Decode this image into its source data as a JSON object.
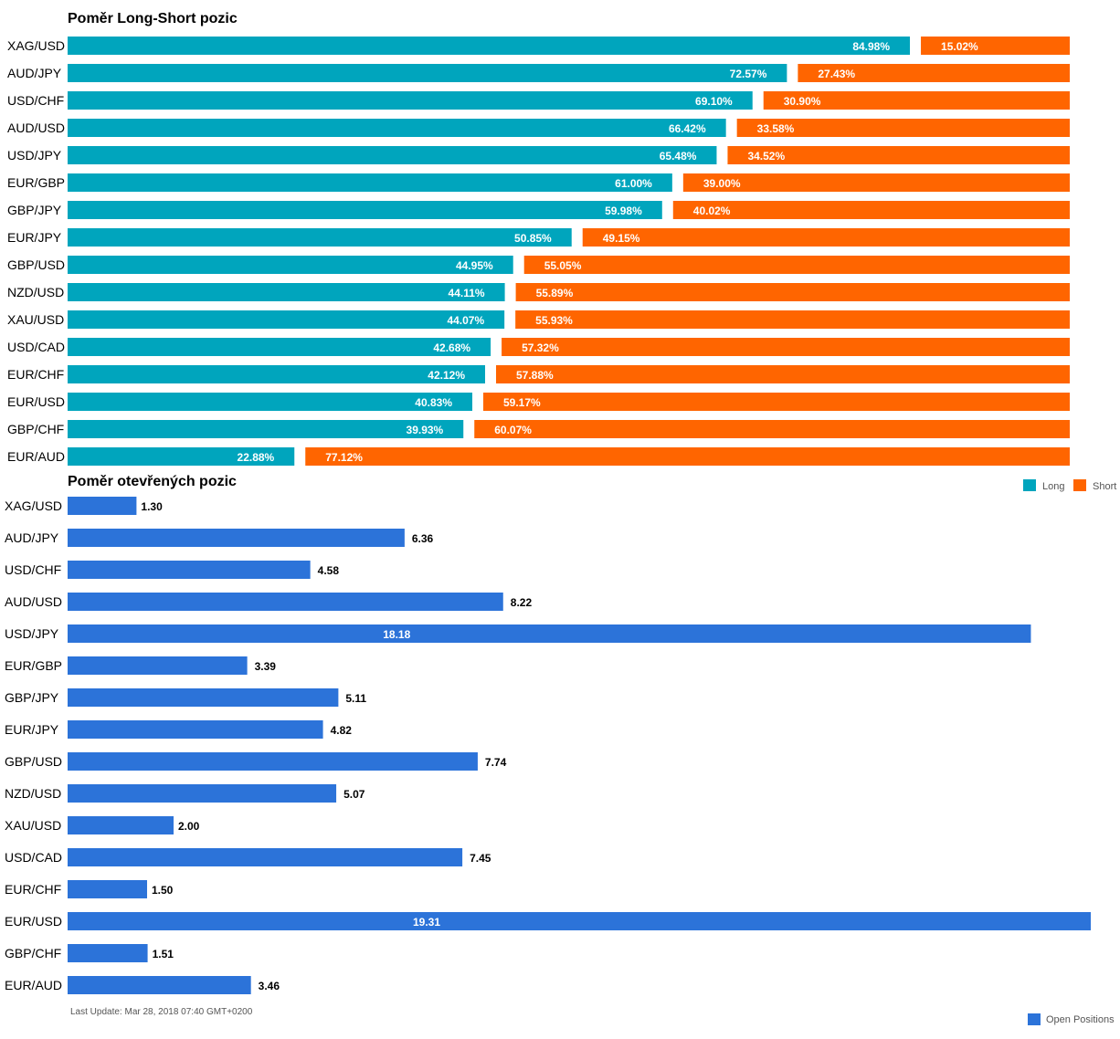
{
  "colors": {
    "long": "#00a5bd",
    "short": "#ff6500",
    "open_positions": "#2c73d9",
    "text": "#000000",
    "footer_text": "#555555"
  },
  "chart_data": [
    {
      "type": "bar",
      "orientation": "horizontal",
      "stacked": true,
      "title": "Poměr Long-Short pozic",
      "categories": [
        "XAG/USD",
        "AUD/JPY",
        "USD/CHF",
        "AUD/USD",
        "USD/JPY",
        "EUR/GBP",
        "GBP/JPY",
        "EUR/JPY",
        "GBP/USD",
        "NZD/USD",
        "XAU/USD",
        "USD/CAD",
        "EUR/CHF",
        "EUR/USD",
        "GBP/CHF",
        "EUR/AUD"
      ],
      "series": [
        {
          "name": "Long",
          "color": "#00a5bd",
          "values": [
            84.98,
            72.57,
            69.1,
            66.42,
            65.48,
            61.0,
            59.98,
            50.85,
            44.95,
            44.11,
            44.07,
            42.68,
            42.12,
            40.83,
            39.93,
            22.88
          ]
        },
        {
          "name": "Short",
          "color": "#ff6500",
          "values": [
            15.02,
            27.43,
            30.9,
            33.58,
            34.52,
            39.0,
            40.02,
            49.15,
            55.05,
            55.89,
            55.93,
            57.32,
            57.88,
            59.17,
            60.07,
            77.12
          ]
        }
      ],
      "data_labels": {
        "long": [
          "84.98%",
          "72.57%",
          "69.10%",
          "66.42%",
          "65.48%",
          "61.00%",
          "59.98%",
          "50.85%",
          "44.95%",
          "44.11%",
          "44.07%",
          "42.68%",
          "42.12%",
          "40.83%",
          "39.93%",
          "22.88%"
        ],
        "short": [
          "15.02%",
          "27.43%",
          "30.90%",
          "33.58%",
          "34.52%",
          "39.00%",
          "40.02%",
          "49.15%",
          "55.05%",
          "55.89%",
          "55.93%",
          "57.32%",
          "57.88%",
          "59.17%",
          "60.07%",
          "77.12%"
        ]
      },
      "legend": {
        "position": "bottom-right",
        "items": [
          "Long",
          "Short"
        ]
      },
      "xlim": [
        0,
        100
      ],
      "grid": false
    },
    {
      "type": "bar",
      "orientation": "horizontal",
      "title": "Poměr otevřených pozic",
      "categories": [
        "XAG/USD",
        "AUD/JPY",
        "USD/CHF",
        "AUD/USD",
        "USD/JPY",
        "EUR/GBP",
        "GBP/JPY",
        "EUR/JPY",
        "GBP/USD",
        "NZD/USD",
        "XAU/USD",
        "USD/CAD",
        "EUR/CHF",
        "EUR/USD",
        "GBP/CHF",
        "EUR/AUD"
      ],
      "series": [
        {
          "name": "Open Positions",
          "color": "#2c73d9",
          "values": [
            1.3,
            6.36,
            4.58,
            8.22,
            18.18,
            3.39,
            5.11,
            4.82,
            7.74,
            5.07,
            2.0,
            7.45,
            1.5,
            19.31,
            1.51,
            3.46
          ]
        }
      ],
      "data_labels": [
        "1.30",
        "6.36",
        "4.58",
        "8.22",
        "18.18",
        "3.39",
        "5.11",
        "4.82",
        "7.74",
        "5.07",
        "2.00",
        "7.45",
        "1.50",
        "19.31",
        "1.51",
        "3.46"
      ],
      "legend": {
        "position": "bottom-right",
        "items": [
          "Open Positions"
        ]
      },
      "xlim": [
        0,
        19.31
      ],
      "grid": false
    }
  ],
  "footer": {
    "last_update": "Last Update: Mar 28, 2018 07:40 GMT+0200"
  }
}
